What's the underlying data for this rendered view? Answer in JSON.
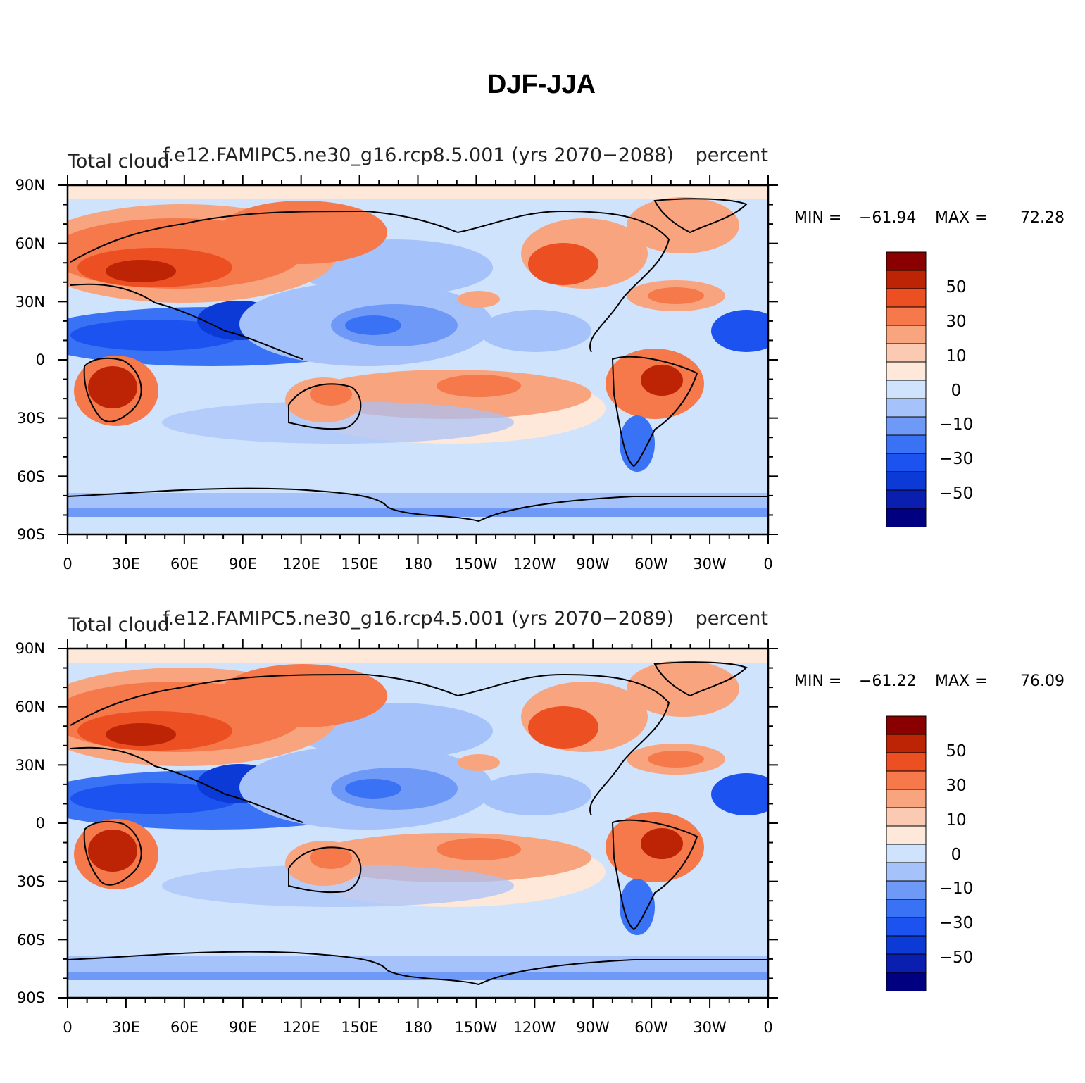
{
  "chart_data": {
    "type": "heatmap",
    "title": "DJF-JJA",
    "colorbar": {
      "colors": [
        "#000080",
        "#0a1fb0",
        "#0b3ad6",
        "#1b52f0",
        "#3a72f5",
        "#6f99f7",
        "#a6c2fa",
        "#cfe4fc",
        "#fde8d9",
        "#fbcab2",
        "#f8a47f",
        "#f6794c",
        "#ec4f22",
        "#bd2405",
        "#8a0000"
      ],
      "labels": [
        "50",
        "30",
        "10",
        "0",
        "−10",
        "−30",
        "−50"
      ]
    },
    "x_ticks": [
      "0",
      "30E",
      "60E",
      "90E",
      "120E",
      "150E",
      "180",
      "150W",
      "120W",
      "90W",
      "60W",
      "30W",
      "0"
    ],
    "y_ticks": [
      "90N",
      "60N",
      "30N",
      "0",
      "30S",
      "60S",
      "90S"
    ],
    "panels": [
      {
        "name": "rcp85",
        "left_label": "Total cloud",
        "center_label": "f.e12.FAMIPC5.ne30_g16.rcp8.5.001 (yrs 2070−2088)",
        "right_label": "percent",
        "min_label": "MIN =",
        "min": "−61.94",
        "max_label": "MAX =",
        "max": "72.28"
      },
      {
        "name": "rcp45",
        "left_label": "Total cloud",
        "center_label": "f.e12.FAMIPC5.ne30_g16.rcp4.5.001 (yrs 2070−2089)",
        "right_label": "percent",
        "min_label": "MIN =",
        "min": "−61.22",
        "max_label": "MAX =",
        "max": "76.09"
      }
    ]
  }
}
